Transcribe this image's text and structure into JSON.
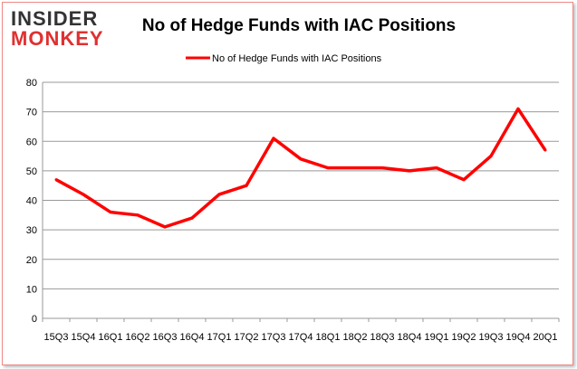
{
  "logo": {
    "line1": "INSIDER",
    "line2": "MONKEY"
  },
  "chart_data": {
    "type": "line",
    "title": "No of Hedge Funds with IAC Positions",
    "categories": [
      "15Q3",
      "15Q4",
      "16Q1",
      "16Q2",
      "16Q3",
      "16Q4",
      "17Q1",
      "17Q2",
      "17Q3",
      "17Q4",
      "18Q1",
      "18Q2",
      "18Q3",
      "18Q4",
      "19Q1",
      "19Q2",
      "19Q3",
      "19Q4",
      "20Q1"
    ],
    "series": [
      {
        "name": "No of Hedge Funds with IAC Positions",
        "color": "#ff0000",
        "values": [
          47,
          42,
          36,
          35,
          31,
          34,
          42,
          45,
          61,
          54,
          51,
          51,
          51,
          50,
          51,
          47,
          55,
          71,
          57
        ]
      }
    ],
    "ylim": [
      0,
      80
    ],
    "yticks": [
      0,
      10,
      20,
      30,
      40,
      50,
      60,
      70,
      80
    ],
    "grid": true,
    "legend": "top"
  }
}
